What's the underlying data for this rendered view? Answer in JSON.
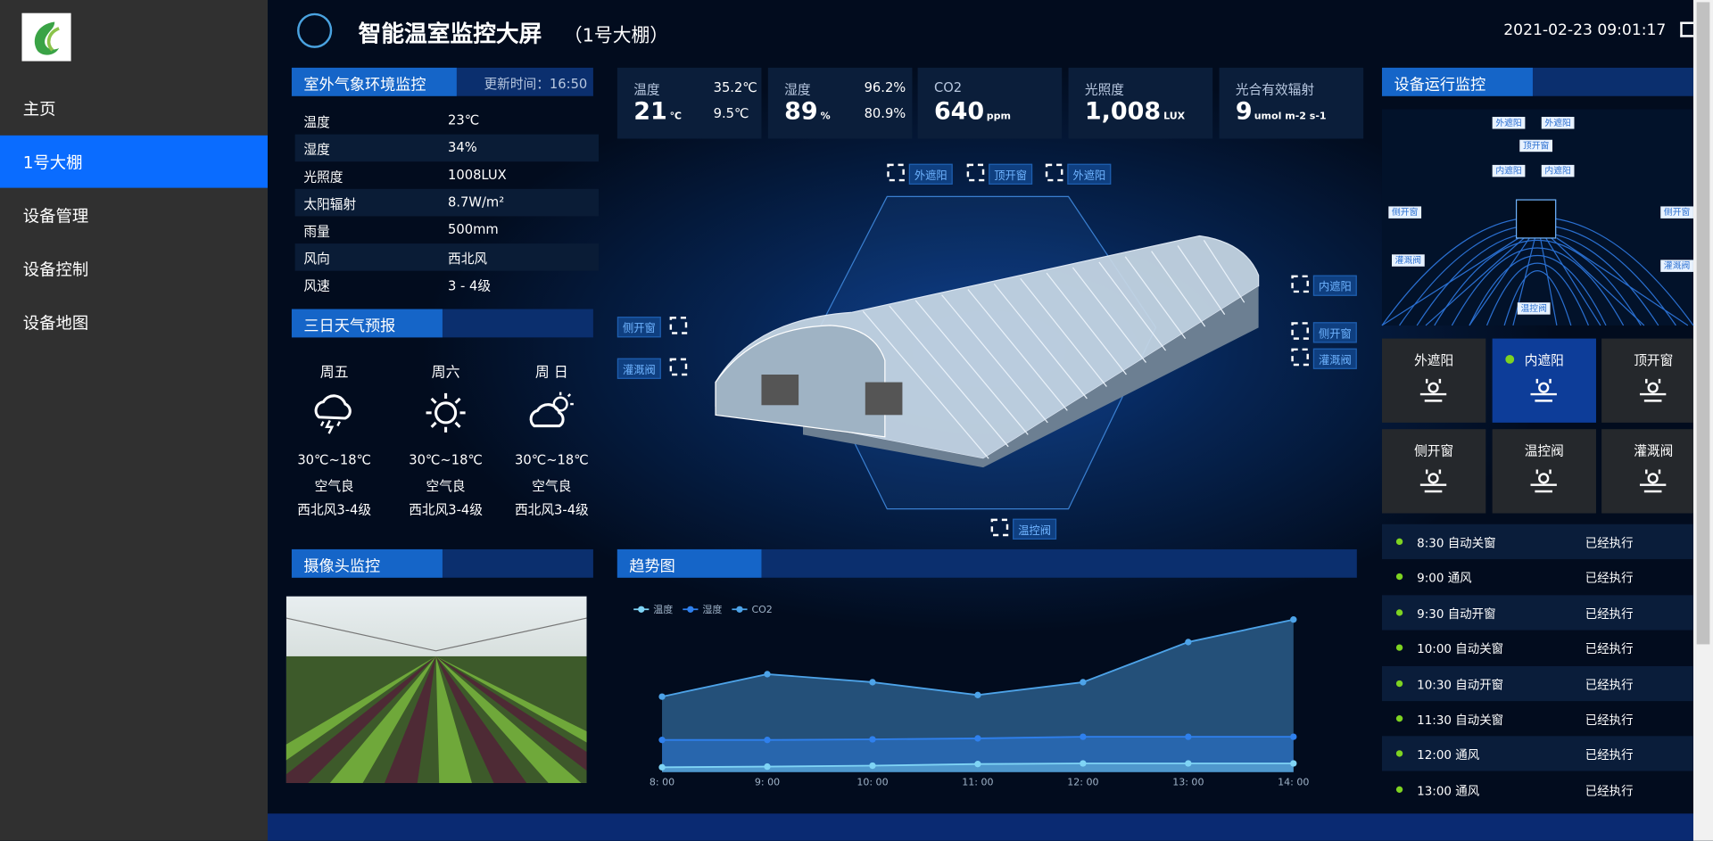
{
  "sidebar": {
    "menu": [
      "主页",
      "1号大棚",
      "设备管理",
      "设备控制",
      "设备地图"
    ]
  },
  "header": {
    "title": "智能温室监控大屏",
    "subtitle": "（1号大棚）",
    "datetime": "2021-02-23 09:01:17"
  },
  "weather": {
    "title": "室外气象环境监控",
    "updated": "更新时间：16:50",
    "rows": [
      [
        "温度",
        "23℃"
      ],
      [
        "湿度",
        "34%"
      ],
      [
        "光照度",
        "1008LUX"
      ],
      [
        "太阳辐射",
        "8.7W/m²"
      ],
      [
        "雨量",
        "500mm"
      ],
      [
        "风向",
        "西北风"
      ],
      [
        "风速",
        "3 - 4级"
      ]
    ]
  },
  "stats": [
    {
      "label": "温度",
      "value": "21",
      "unit": "℃",
      "high": "35.2℃",
      "low": "9.5℃"
    },
    {
      "label": "湿度",
      "value": "89",
      "unit": "%",
      "high": "96.2%",
      "low": "80.9%"
    },
    {
      "label": "CO2",
      "value": "640",
      "unit": "ppm"
    },
    {
      "label": "光照度",
      "value": "1,008",
      "unit": "LUX"
    },
    {
      "label": "光合有效辐射",
      "value": "9",
      "unit": "umol m-2 s-1"
    }
  ],
  "forecast": {
    "title": "三日天气预报",
    "days": [
      {
        "day": "周五",
        "temp": "30℃~18℃",
        "air": "空气良",
        "wind": "西北风3-4级"
      },
      {
        "day": "周六",
        "temp": "30℃~18℃",
        "air": "空气良",
        "wind": "西北风3-4级"
      },
      {
        "day": "周 日",
        "temp": "30℃~18℃",
        "air": "空气良",
        "wind": "西北风3-4级"
      }
    ]
  },
  "camera": {
    "title": "摄像头监控"
  },
  "greenhouse": {
    "labels": [
      "外遮阳",
      "顶开窗",
      "外遮阳",
      "内遮阳",
      "侧开窗",
      "灌溉阀",
      "侧开窗",
      "灌溉阀",
      "温控阀"
    ]
  },
  "chart_data": {
    "type": "line",
    "title": "趋势图",
    "categories": [
      "8: 00",
      "9: 00",
      "10: 00",
      "11: 00",
      "12: 00",
      "13: 00",
      "14: 00"
    ],
    "series": [
      {
        "name": "温度",
        "color": "#7fd4f5",
        "values": [
          3,
          3.4,
          4,
          5,
          5.4,
          5.4,
          5.4
        ]
      },
      {
        "name": "湿度",
        "color": "#2f80ed",
        "values": [
          20,
          20,
          20.4,
          21,
          22,
          22,
          22
        ]
      },
      {
        "name": "CO2",
        "color": "#4da3e8",
        "values": [
          47,
          61,
          56,
          48,
          56,
          81,
          95
        ]
      }
    ],
    "ylim": [
      0,
      100
    ]
  },
  "devices": {
    "title": "设备运行监控",
    "map_labels": [
      "外遮阳",
      "外遮阳",
      "顶开窗",
      "内遮阳",
      "内遮阳",
      "侧开窗",
      "侧开窗",
      "灌溉阀",
      "灌溉阀",
      "温控阀"
    ],
    "buttons": [
      "外遮阳",
      "内遮阳",
      "顶开窗",
      "侧开窗",
      "温控阀",
      "灌溉阀"
    ]
  },
  "schedule": [
    {
      "item": "8:30 自动关窗",
      "status": "已经执行"
    },
    {
      "item": "9:00 通风",
      "status": "已经执行"
    },
    {
      "item": "9:30 自动开窗",
      "status": "已经执行"
    },
    {
      "item": "10:00 自动关窗",
      "status": "已经执行"
    },
    {
      "item": "10:30 自动开窗",
      "status": "已经执行"
    },
    {
      "item": "11:30 自动关窗",
      "status": "已经执行"
    },
    {
      "item": "12:00 通风",
      "status": "已经执行"
    },
    {
      "item": "13:00 通风",
      "status": "已经执行"
    }
  ]
}
